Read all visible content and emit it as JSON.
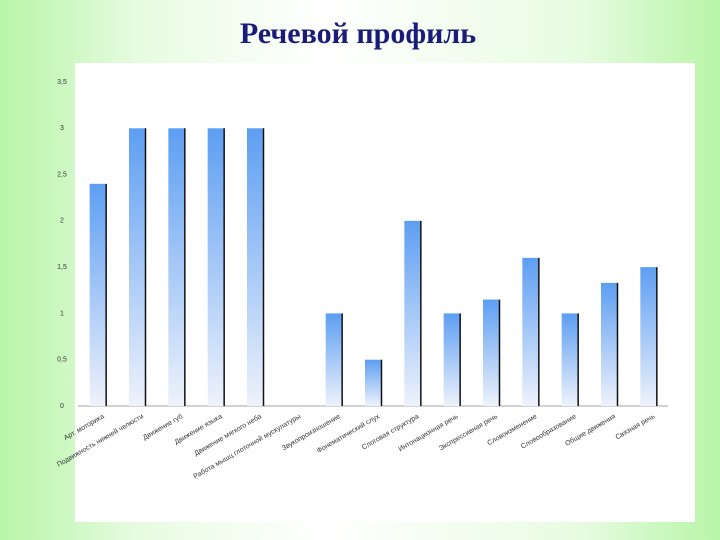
{
  "chart_data": {
    "type": "bar",
    "title": "Речевой профиль",
    "categories": [
      "Арт. моторика",
      "Подвижность нижней челюсти",
      "Движение губ",
      "Движение языка",
      "Движение мягкого неба",
      "Работа мышц глоточной мускулатуры",
      "Звукопроизношение",
      "Фонематический слух",
      "Слоговая структура",
      "Интонационная речь",
      "Экспрессивная речь",
      "Словоизменение",
      "Словообразование",
      "Общие движения",
      "Связная речь"
    ],
    "values": [
      2.4,
      3,
      3,
      3,
      3,
      0,
      1,
      0.5,
      2,
      1,
      1.15,
      1.6,
      1,
      1.33,
      1.5
    ],
    "color": "#6fa8f0",
    "ylim": [
      0,
      3.5
    ],
    "yticks": [
      0,
      {
        "value": 0.5,
        "label": "0,5"
      },
      1,
      {
        "value": 1.5,
        "label": "1,5"
      },
      2,
      {
        "value": 2.5,
        "label": "2,5"
      },
      3,
      {
        "value": 3.5,
        "label": "3,5"
      }
    ],
    "grid": false
  }
}
